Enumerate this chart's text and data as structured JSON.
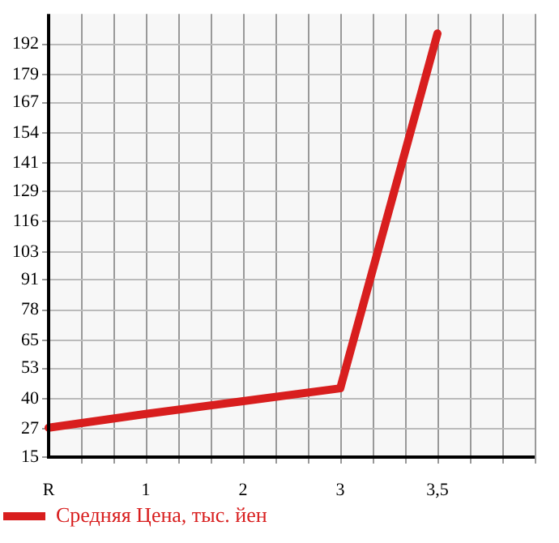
{
  "chart_data": {
    "type": "line",
    "categories": [
      "R",
      "1",
      "2",
      "3",
      "3,5",
      null
    ],
    "series": [
      {
        "name": "Средняя Цена, тыс. йен",
        "color": "#d81e1e",
        "values": [
          27.6,
          33.5,
          39.0,
          44.5,
          196.6,
          null
        ]
      }
    ],
    "ylim": [
      15,
      205
    ],
    "yticks": [
      15,
      27,
      40,
      53,
      65,
      78,
      91,
      103,
      116,
      129,
      141,
      154,
      167,
      179,
      192
    ],
    "grid": true,
    "legend": "bottom left",
    "marker": "none",
    "line_style": "solid"
  }
}
